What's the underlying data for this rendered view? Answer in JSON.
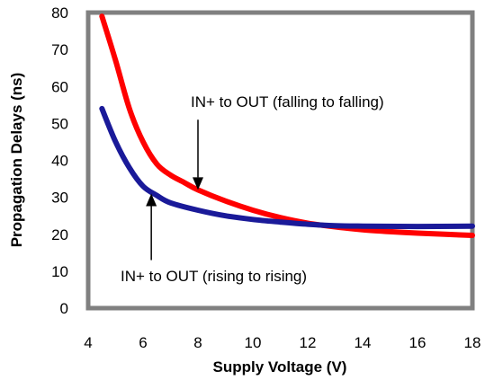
{
  "chart_data": {
    "type": "line",
    "title": "",
    "xlabel": "Supply Voltage (V)",
    "ylabel": "Propagation Delays (ns)",
    "xlim": [
      4,
      18
    ],
    "ylim": [
      0,
      80
    ],
    "x_ticks": [
      "4",
      "6",
      "8",
      "10",
      "12",
      "14",
      "16",
      "18"
    ],
    "y_ticks": [
      "0",
      "10",
      "20",
      "30",
      "40",
      "50",
      "60",
      "70",
      "80"
    ],
    "grid": false,
    "series": [
      {
        "color": "#ff0000",
        "x": [
          4.5,
          5.0,
          5.5,
          6.0,
          6.5,
          7.0,
          7.5,
          8.0,
          9.0,
          10.0,
          11.0,
          12.0,
          13.0,
          14.0,
          15.0,
          16.0,
          17.0,
          18.0
        ],
        "y": [
          79,
          67,
          54,
          45,
          39,
          36,
          34,
          32,
          29,
          26.5,
          24.5,
          23,
          22,
          21.2,
          20.7,
          20.3,
          20.0,
          19.7
        ]
      },
      {
        "color": "#1a1a99",
        "x": [
          4.5,
          5.0,
          5.5,
          6.0,
          6.5,
          7.0,
          8.0,
          9.0,
          10.0,
          11.0,
          12.0,
          13.0,
          14.0,
          16.0,
          18.0
        ],
        "y": [
          54,
          45,
          38,
          33,
          30.5,
          28.5,
          26.5,
          25,
          24,
          23.3,
          22.7,
          22.3,
          22.2,
          22.1,
          22.2
        ]
      }
    ],
    "annotations": [
      {
        "text": "IN+ to OUT (falling to falling)",
        "arrow_x": 8.0,
        "arrow_from_y": 51,
        "arrow_to_y": 32
      },
      {
        "text": "IN+ to OUT (rising to rising)",
        "arrow_x": 6.3,
        "arrow_from_y": 13,
        "arrow_to_y": 31
      }
    ]
  }
}
